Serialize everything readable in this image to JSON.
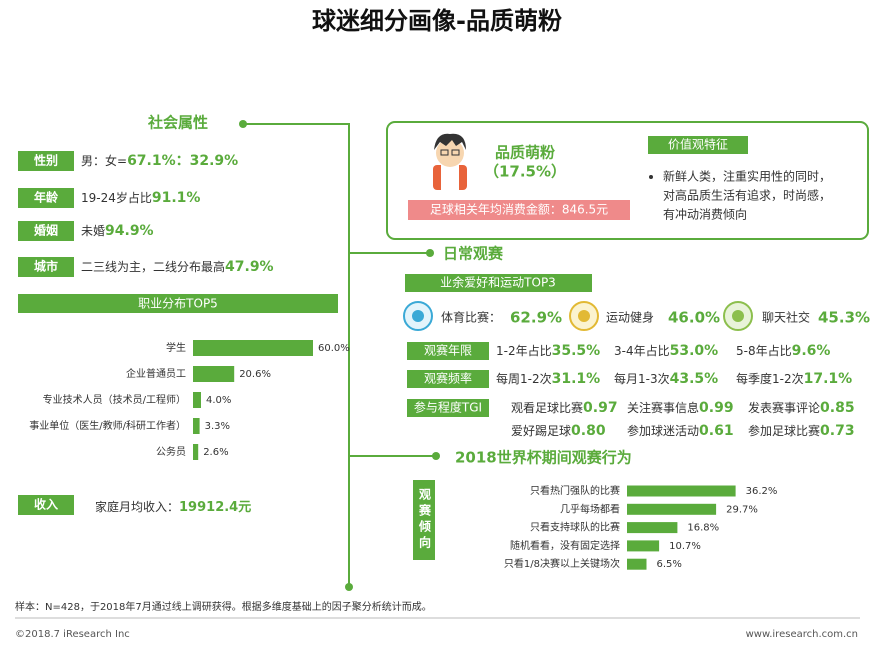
{
  "header": {
    "title": "球迷细分画像-品质萌粉"
  },
  "social": {
    "title": "社会属性",
    "rows": [
      {
        "label": "性别",
        "text": "男：女=",
        "highlight": "67.1%：32.9%"
      },
      {
        "label": "年龄",
        "text": "19-24岁占比",
        "highlight": "91.1%"
      },
      {
        "label": "婚姻",
        "text": "未婚",
        "highlight": "94.9%"
      },
      {
        "label": "城市",
        "text": "二三线为主，二线分布最高",
        "highlight": "47.9%"
      }
    ]
  },
  "occupation": {
    "title": "职业分布TOP5",
    "categories": [
      "学生",
      "企业普通员工",
      "专业技术人员（技术员/工程师）",
      "事业单位（医生/教师/科研工作者）",
      "公务员"
    ],
    "values": [
      60.0,
      20.6,
      4.0,
      3.3,
      2.6
    ],
    "value_labels": [
      "60.0%",
      "20.6%",
      "4.0%",
      "3.3%",
      "2.6%"
    ],
    "color": "#5aab3c"
  },
  "income": {
    "label": "收入",
    "text": "家庭月均收入：",
    "highlight": "19912.4元"
  },
  "profile": {
    "name": "品质萌粉",
    "share": "（17.5%）",
    "spend": "足球相关年均消费金额：846.5元",
    "values_title": "价值观特征",
    "values_text": [
      "新鲜人类，注重实用性的同时，",
      "对高品质生活有追求，时尚感，",
      "有冲动消费倾向"
    ]
  },
  "daily": {
    "title": "日常观赛",
    "hobby_title": "业余爱好和运动TOP3",
    "hobbies": [
      {
        "name": "体育比赛：",
        "value": "62.9%"
      },
      {
        "name": "运动健身",
        "value": "46.0%"
      },
      {
        "name": "聊天社交",
        "value": "45.3%"
      }
    ],
    "rows": [
      {
        "label": "观赛年限",
        "items": [
          {
            "text": "1-2年占比",
            "value": "35.5%"
          },
          {
            "text": "3-4年占比",
            "value": "53.0%"
          },
          {
            "text": "5-8年占比",
            "value": "9.6%"
          }
        ]
      },
      {
        "label": "观赛频率",
        "items": [
          {
            "text": "每周1-2次",
            "value": "31.1%"
          },
          {
            "text": "每月1-3次",
            "value": "43.5%"
          },
          {
            "text": "每季度1-2次",
            "value": "17.1%"
          }
        ]
      },
      {
        "label": "参与程度TGI",
        "items": [
          {
            "text": "观看足球比赛",
            "value": "0.97"
          },
          {
            "text": "关注赛事信息",
            "value": "0.99"
          },
          {
            "text": "发表赛事评论",
            "value": "0.85"
          },
          {
            "text": "爱好踢足球",
            "value": "0.80"
          },
          {
            "text": "参加球迷活动",
            "value": "0.61"
          },
          {
            "text": "参加足球比赛",
            "value": "0.73"
          }
        ]
      }
    ]
  },
  "worldcup": {
    "title": "2018世界杯期间观赛行为",
    "axis_label": "观赛倾向",
    "categories": [
      "只看热门强队的比赛",
      "几乎每场都看",
      "只看支持球队的比赛",
      "随机看看，没有固定选择",
      "只看1/8决赛以上关键场次"
    ],
    "values": [
      36.2,
      29.7,
      16.8,
      10.7,
      6.5
    ],
    "value_labels": [
      "36.2%",
      "29.7%",
      "16.8%",
      "10.7%",
      "6.5%"
    ],
    "color": "#5aab3c"
  },
  "footer": {
    "note": "样本：N=428，于2018年7月通过线上调研获得。根据多维度基础上的因子聚分析统计而成。",
    "copyright": "©2018.7 iResearch Inc",
    "url": "www.iresearch.com.cn"
  }
}
